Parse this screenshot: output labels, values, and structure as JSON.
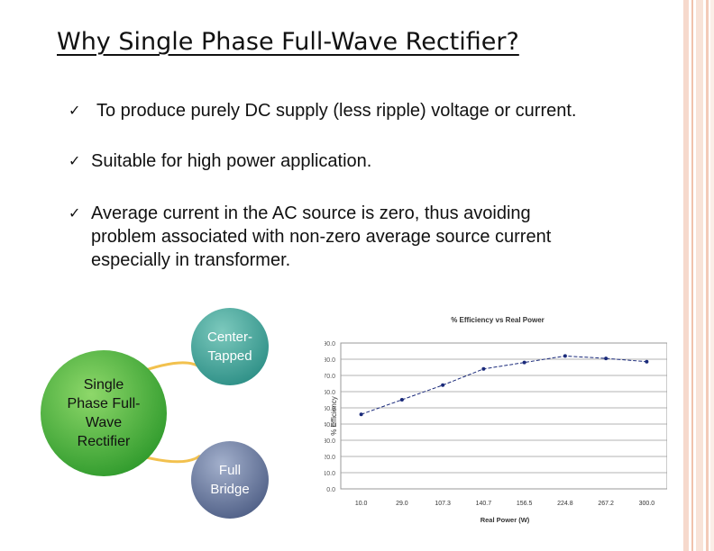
{
  "slide": {
    "title": "Why Single Phase Full-Wave Rectifier?",
    "bullets": [
      {
        "check": "✓",
        "text": "To produce purely DC supply (less ripple) voltage or current."
      },
      {
        "check": "✓",
        "text": "Suitable for high power application."
      },
      {
        "check": "✓",
        "lines": [
          "Average current in the AC source is zero, thus avoiding",
          "problem associated with non-zero average source current",
          "especially in transformer."
        ]
      }
    ]
  },
  "diagram": {
    "main": {
      "lines": [
        "Single",
        "Phase Full-",
        "Wave",
        "Rectifier"
      ],
      "color": "#3aa030"
    },
    "center_tapped": {
      "lines": [
        "Center-",
        "Tapped"
      ],
      "color": "#3e9a90"
    },
    "full_bridge": {
      "lines": [
        "Full",
        "Bridge"
      ],
      "color": "#5a6a8e"
    },
    "connector_color": "#f2c14e"
  },
  "chart_data": {
    "type": "line",
    "title": "% Efficiency vs Real Power",
    "xlabel": "Real Power (W)",
    "ylabel": "% Efficiency",
    "categories": [
      "10.0",
      "29.0",
      "107.3",
      "140.7",
      "156.5",
      "224.8",
      "267.2",
      "300.0"
    ],
    "values": [
      46,
      55,
      64,
      74,
      78,
      82,
      80.5,
      78.5
    ],
    "y_ticks": [
      "0.0",
      "10.0",
      "20.0",
      "30.0",
      "40.0",
      "50.0",
      "60.0",
      "70.0",
      "80.0",
      "90.0"
    ],
    "ylim": [
      0,
      90
    ],
    "grid": true,
    "line_color": "#1a2a7a"
  }
}
